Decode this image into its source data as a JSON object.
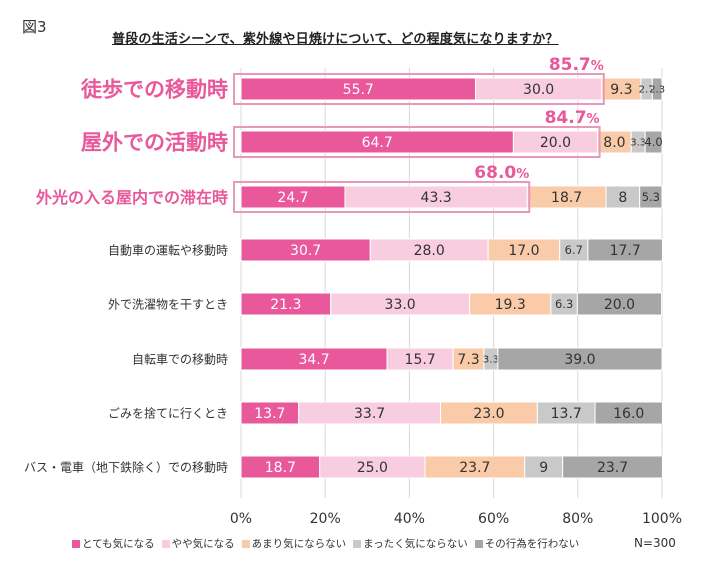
{
  "figure_label": "図3",
  "n_label": "N=300",
  "chart_data": {
    "type": "bar",
    "orientation": "horizontal",
    "stacked": true,
    "title": "普段の生活シーンで、紫外線や日焼けについて、どの程度気になりますか？",
    "categories": [
      "徒歩での移動時",
      "屋外での活動時",
      "外光の入る屋内での滞在時",
      "自動車の運転や移動時",
      "外で洗濯物を干すとき",
      "自転車での移動時",
      "ごみを捨てに行くとき",
      "バス・電車（地下鉄除く）での移動時"
    ],
    "emphasized_categories": [
      0,
      1,
      2
    ],
    "series": [
      {
        "name": "とても気になる",
        "color": "#e9589a",
        "values": [
          55.7,
          64.7,
          24.7,
          30.7,
          21.3,
          34.7,
          13.7,
          18.7
        ],
        "labels": [
          "55.7",
          "64.7",
          "24.7",
          "30.7",
          "21.3",
          "34.7",
          "13.7",
          "18.7"
        ]
      },
      {
        "name": "やや気になる",
        "color": "#f8cde0",
        "values": [
          30.0,
          20.0,
          43.3,
          28.0,
          33.0,
          15.7,
          33.7,
          25.0
        ],
        "labels": [
          "30.0",
          "20.0",
          "43.3",
          "28.0",
          "33.0",
          "15.7",
          "33.7",
          "25.0"
        ]
      },
      {
        "name": "あまり気にならない",
        "color": "#f9cba8",
        "values": [
          9.3,
          8.0,
          18.7,
          17.0,
          19.3,
          7.3,
          23.0,
          23.7
        ],
        "labels": [
          "9.3",
          "8.0",
          "18.7",
          "17.0",
          "19.3",
          "7.3",
          "23.0",
          "23.7"
        ]
      },
      {
        "name": "まったく気にならない",
        "color": "#c9c9c9",
        "values": [
          2.7,
          3.3,
          8.0,
          6.7,
          6.3,
          3.3,
          13.7,
          9.0
        ],
        "labels": [
          "2.7",
          "3.3",
          "8",
          "6.7",
          "6.3",
          "3.3",
          "13.7",
          "9"
        ]
      },
      {
        "name": "その行為を行わない",
        "color": "#a6a6a6",
        "values": [
          2.3,
          4.0,
          5.3,
          17.7,
          20.0,
          39.0,
          16.0,
          23.7
        ],
        "labels": [
          "2.3",
          "4.0",
          "5.3",
          "17.7",
          "20.0",
          "39.0",
          "16.0",
          "23.7"
        ]
      }
    ],
    "totals": [
      {
        "category_index": 0,
        "label": "85.7",
        "unit": "%"
      },
      {
        "category_index": 1,
        "label": "84.7",
        "unit": "%"
      },
      {
        "category_index": 2,
        "label": "68.0",
        "unit": "%"
      }
    ],
    "xlim": [
      0,
      100
    ],
    "xticks": [
      "0%",
      "20%",
      "40%",
      "60%",
      "80%",
      "100%"
    ],
    "xlabel": "",
    "ylabel": "",
    "grid": true,
    "legend_position": "bottom",
    "colors": {
      "accent": "#e9589a",
      "outline": "#e79ab8",
      "grid": "#d9d9d9"
    }
  }
}
